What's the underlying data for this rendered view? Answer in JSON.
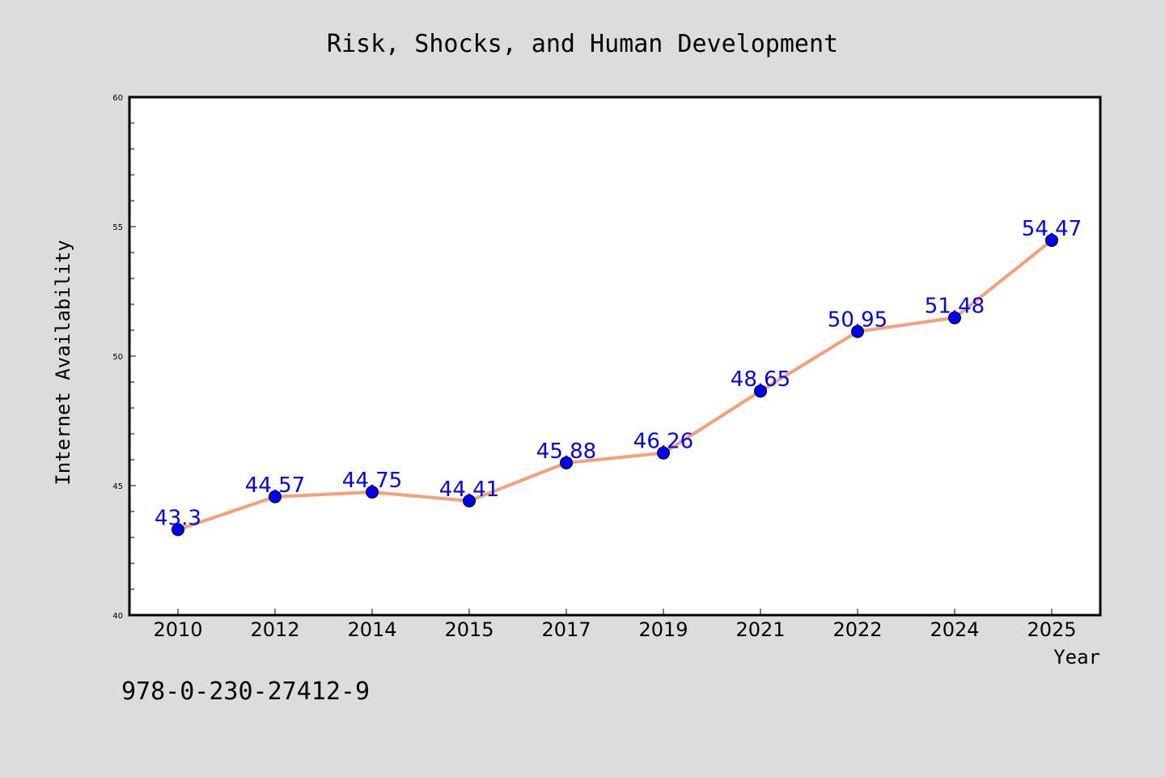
{
  "chart_data": {
    "type": "line",
    "title": "Risk, Shocks, and Human Development",
    "xlabel": "Year",
    "ylabel": "Internet Availability",
    "categories": [
      "2010",
      "2012",
      "2014",
      "2015",
      "2017",
      "2019",
      "2021",
      "2022",
      "2024",
      "2025"
    ],
    "series": [
      {
        "values": [
          43.3,
          44.57,
          44.75,
          44.41,
          45.88,
          46.26,
          48.65,
          50.95,
          51.48,
          54.47
        ],
        "line_color": "#f4a07a",
        "marker_color": "#0000ee"
      }
    ],
    "data_labels": [
      "43.3",
      "44.57",
      "44.75",
      "44.41",
      "45.88",
      "46.26",
      "48.65",
      "50.95",
      "51.48",
      "54.47"
    ],
    "ylim": [
      40,
      60
    ],
    "yticks": [
      "40",
      "45",
      "50",
      "55",
      "60"
    ],
    "grid": false,
    "label_color": "#0000ff",
    "background": "#dcdcdc",
    "plot_background": "#ffffff"
  },
  "footer": {
    "isbn": "978-0-230-27412-9"
  }
}
